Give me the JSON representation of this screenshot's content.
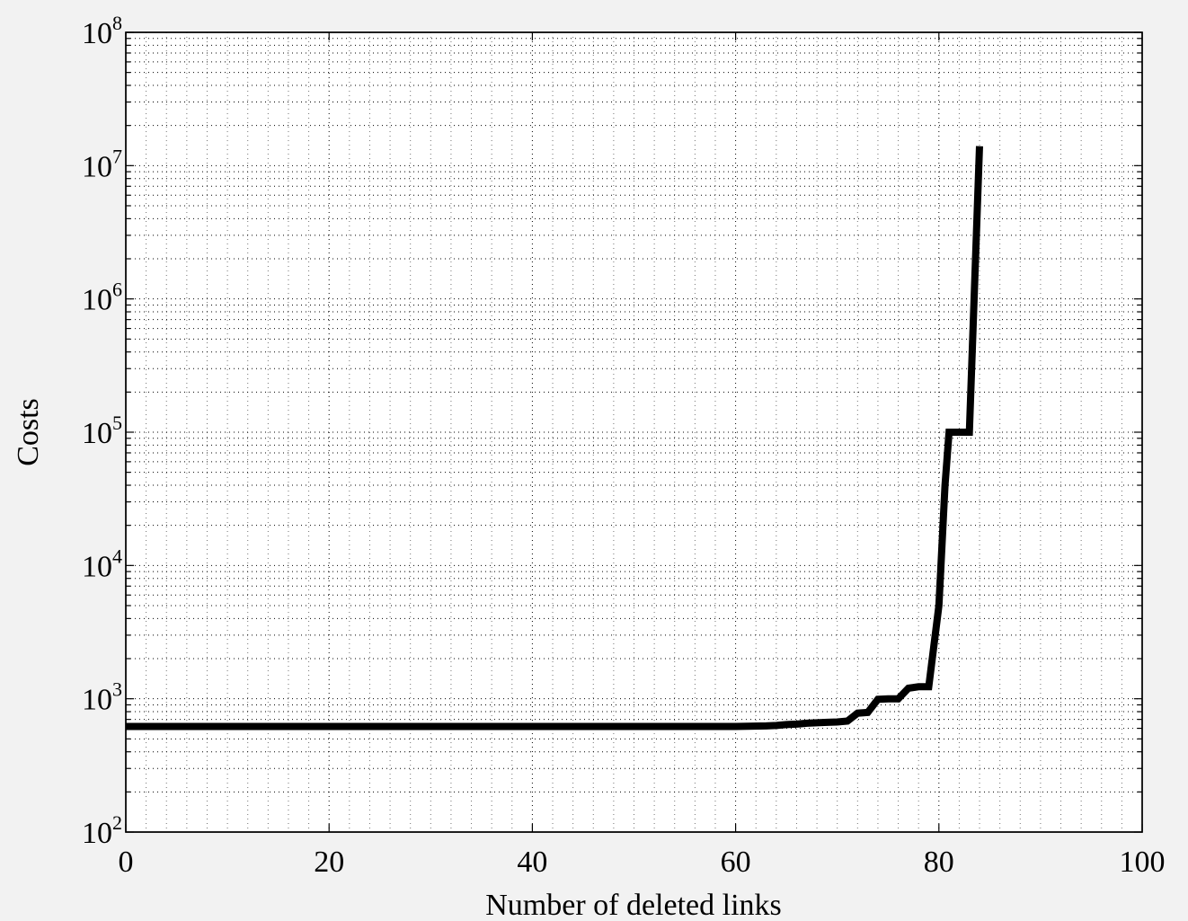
{
  "chart_data": {
    "type": "line",
    "title": "",
    "xlabel": "Number of deleted links",
    "ylabel": "Costs",
    "xlim": [
      0,
      100
    ],
    "ylim": [
      100,
      100000000
    ],
    "yscale": "log",
    "grid": true,
    "x_ticks": [
      0,
      20,
      40,
      60,
      80,
      100
    ],
    "x_tick_labels": [
      "0",
      "20",
      "40",
      "60",
      "80",
      "100"
    ],
    "y_tick_exponents": [
      2,
      3,
      4,
      5,
      6,
      7,
      8
    ],
    "y_tick_base": "10",
    "line_color": "#000000",
    "series": [
      {
        "x": [
          0,
          60,
          63,
          64,
          65,
          66,
          67,
          68,
          69,
          70,
          71,
          72,
          73,
          74,
          75,
          76,
          77,
          78,
          79,
          80,
          80.2,
          80.6,
          81,
          82,
          83,
          84
        ],
        "y": [
          620,
          620,
          625,
          630,
          640,
          645,
          655,
          660,
          665,
          670,
          680,
          780,
          790,
          990,
          1000,
          1000,
          1200,
          1230,
          1230,
          5000,
          10000,
          40000,
          100000,
          100000,
          100000,
          14000000
        ]
      }
    ]
  }
}
